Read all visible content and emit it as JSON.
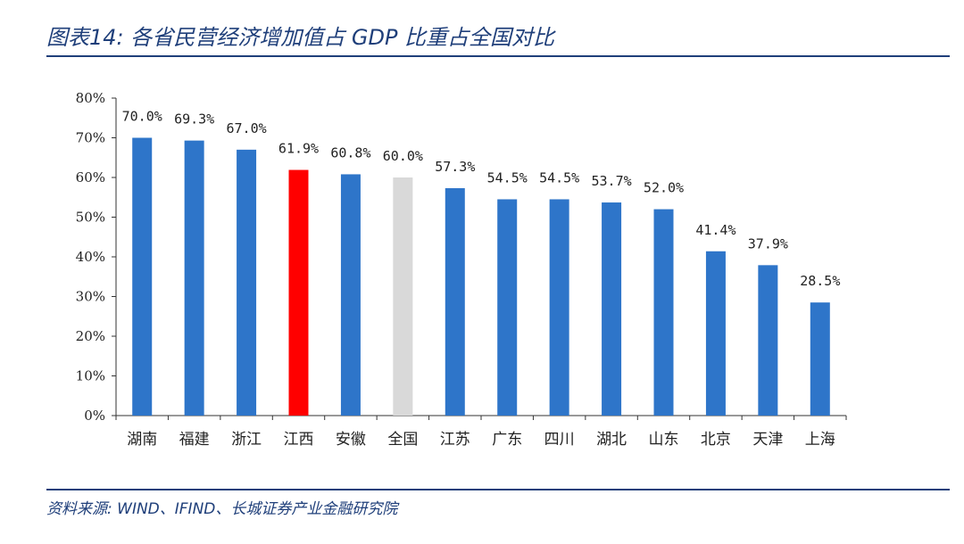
{
  "header": {
    "title": "图表14:  各省民营经济增加值占 GDP 比重占全国对比"
  },
  "footer": {
    "source": "资料来源: WIND、IFIND、长城证券产业金融研究院"
  },
  "chart_data": {
    "type": "bar",
    "title": "各省民营经济增加值占 GDP 比重占全国对比",
    "xlabel": "",
    "ylabel": "",
    "ylim": [
      0,
      80
    ],
    "yticks": [
      0,
      10,
      20,
      30,
      40,
      50,
      60,
      70,
      80
    ],
    "ytick_labels": [
      "0%",
      "10%",
      "20%",
      "30%",
      "40%",
      "50%",
      "60%",
      "70%",
      "80%"
    ],
    "categories": [
      "湖南",
      "福建",
      "浙江",
      "江西",
      "安徽",
      "全国",
      "江苏",
      "广东",
      "四川",
      "湖北",
      "山东",
      "北京",
      "天津",
      "上海"
    ],
    "values": [
      70.0,
      69.3,
      67.0,
      61.9,
      60.8,
      60.0,
      57.3,
      54.5,
      54.5,
      53.7,
      52.0,
      41.4,
      37.9,
      28.5
    ],
    "data_labels": [
      "70.0%",
      "69.3%",
      "67.0%",
      "61.9%",
      "60.8%",
      "60.0%",
      "57.3%",
      "54.5%",
      "54.5%",
      "53.7%",
      "52.0%",
      "41.4%",
      "37.9%",
      "28.5%"
    ],
    "colors": {
      "default": "#2e75c9",
      "highlight": "#ff0000",
      "national": "#d9d9d9",
      "axis": "#333333"
    },
    "highlight_category": "江西",
    "national_category": "全国",
    "grid": false,
    "legend": "none"
  }
}
